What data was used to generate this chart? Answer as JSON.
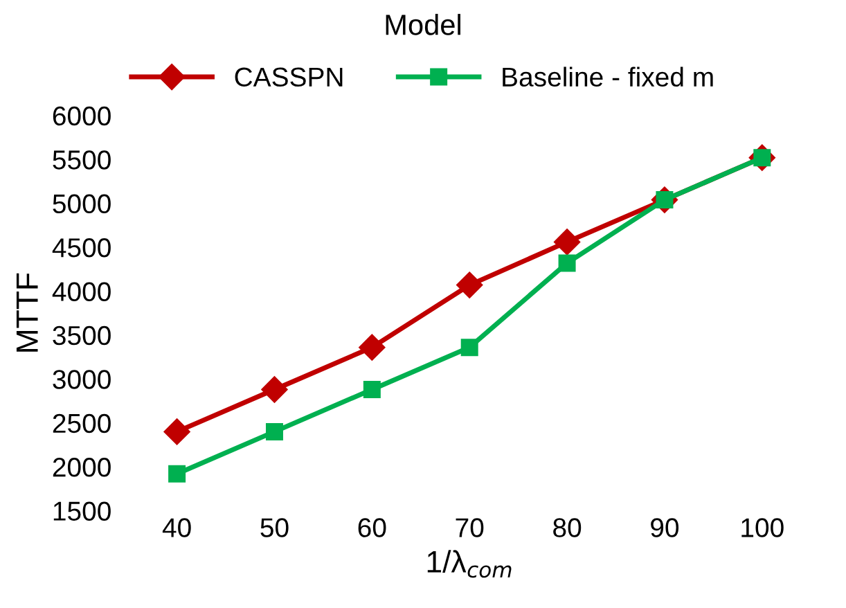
{
  "chart_data": {
    "type": "line",
    "legend_title": "Model",
    "xlabel": "1/λ$_{com}$",
    "ylabel": "MTTF",
    "categories": [
      "40",
      "50",
      "60",
      "70",
      "80",
      "90",
      "100"
    ],
    "series": [
      {
        "name": "CASSPN",
        "color": "#c00000",
        "marker": "diamond",
        "values": [
          2400,
          2880,
          3360,
          4070,
          4560,
          5040,
          5520
        ]
      },
      {
        "name": "Baseline - fixed m",
        "color": "#00b050",
        "marker": "square",
        "values": [
          1920,
          2400,
          2880,
          3360,
          4320,
          5040,
          5520
        ]
      }
    ],
    "ylim": [
      1500,
      6000
    ],
    "yticks": [
      1500,
      2000,
      2500,
      3000,
      3500,
      4000,
      4500,
      5000,
      5500,
      6000
    ],
    "grid": false,
    "legend": "top",
    "line_style": "solid"
  }
}
